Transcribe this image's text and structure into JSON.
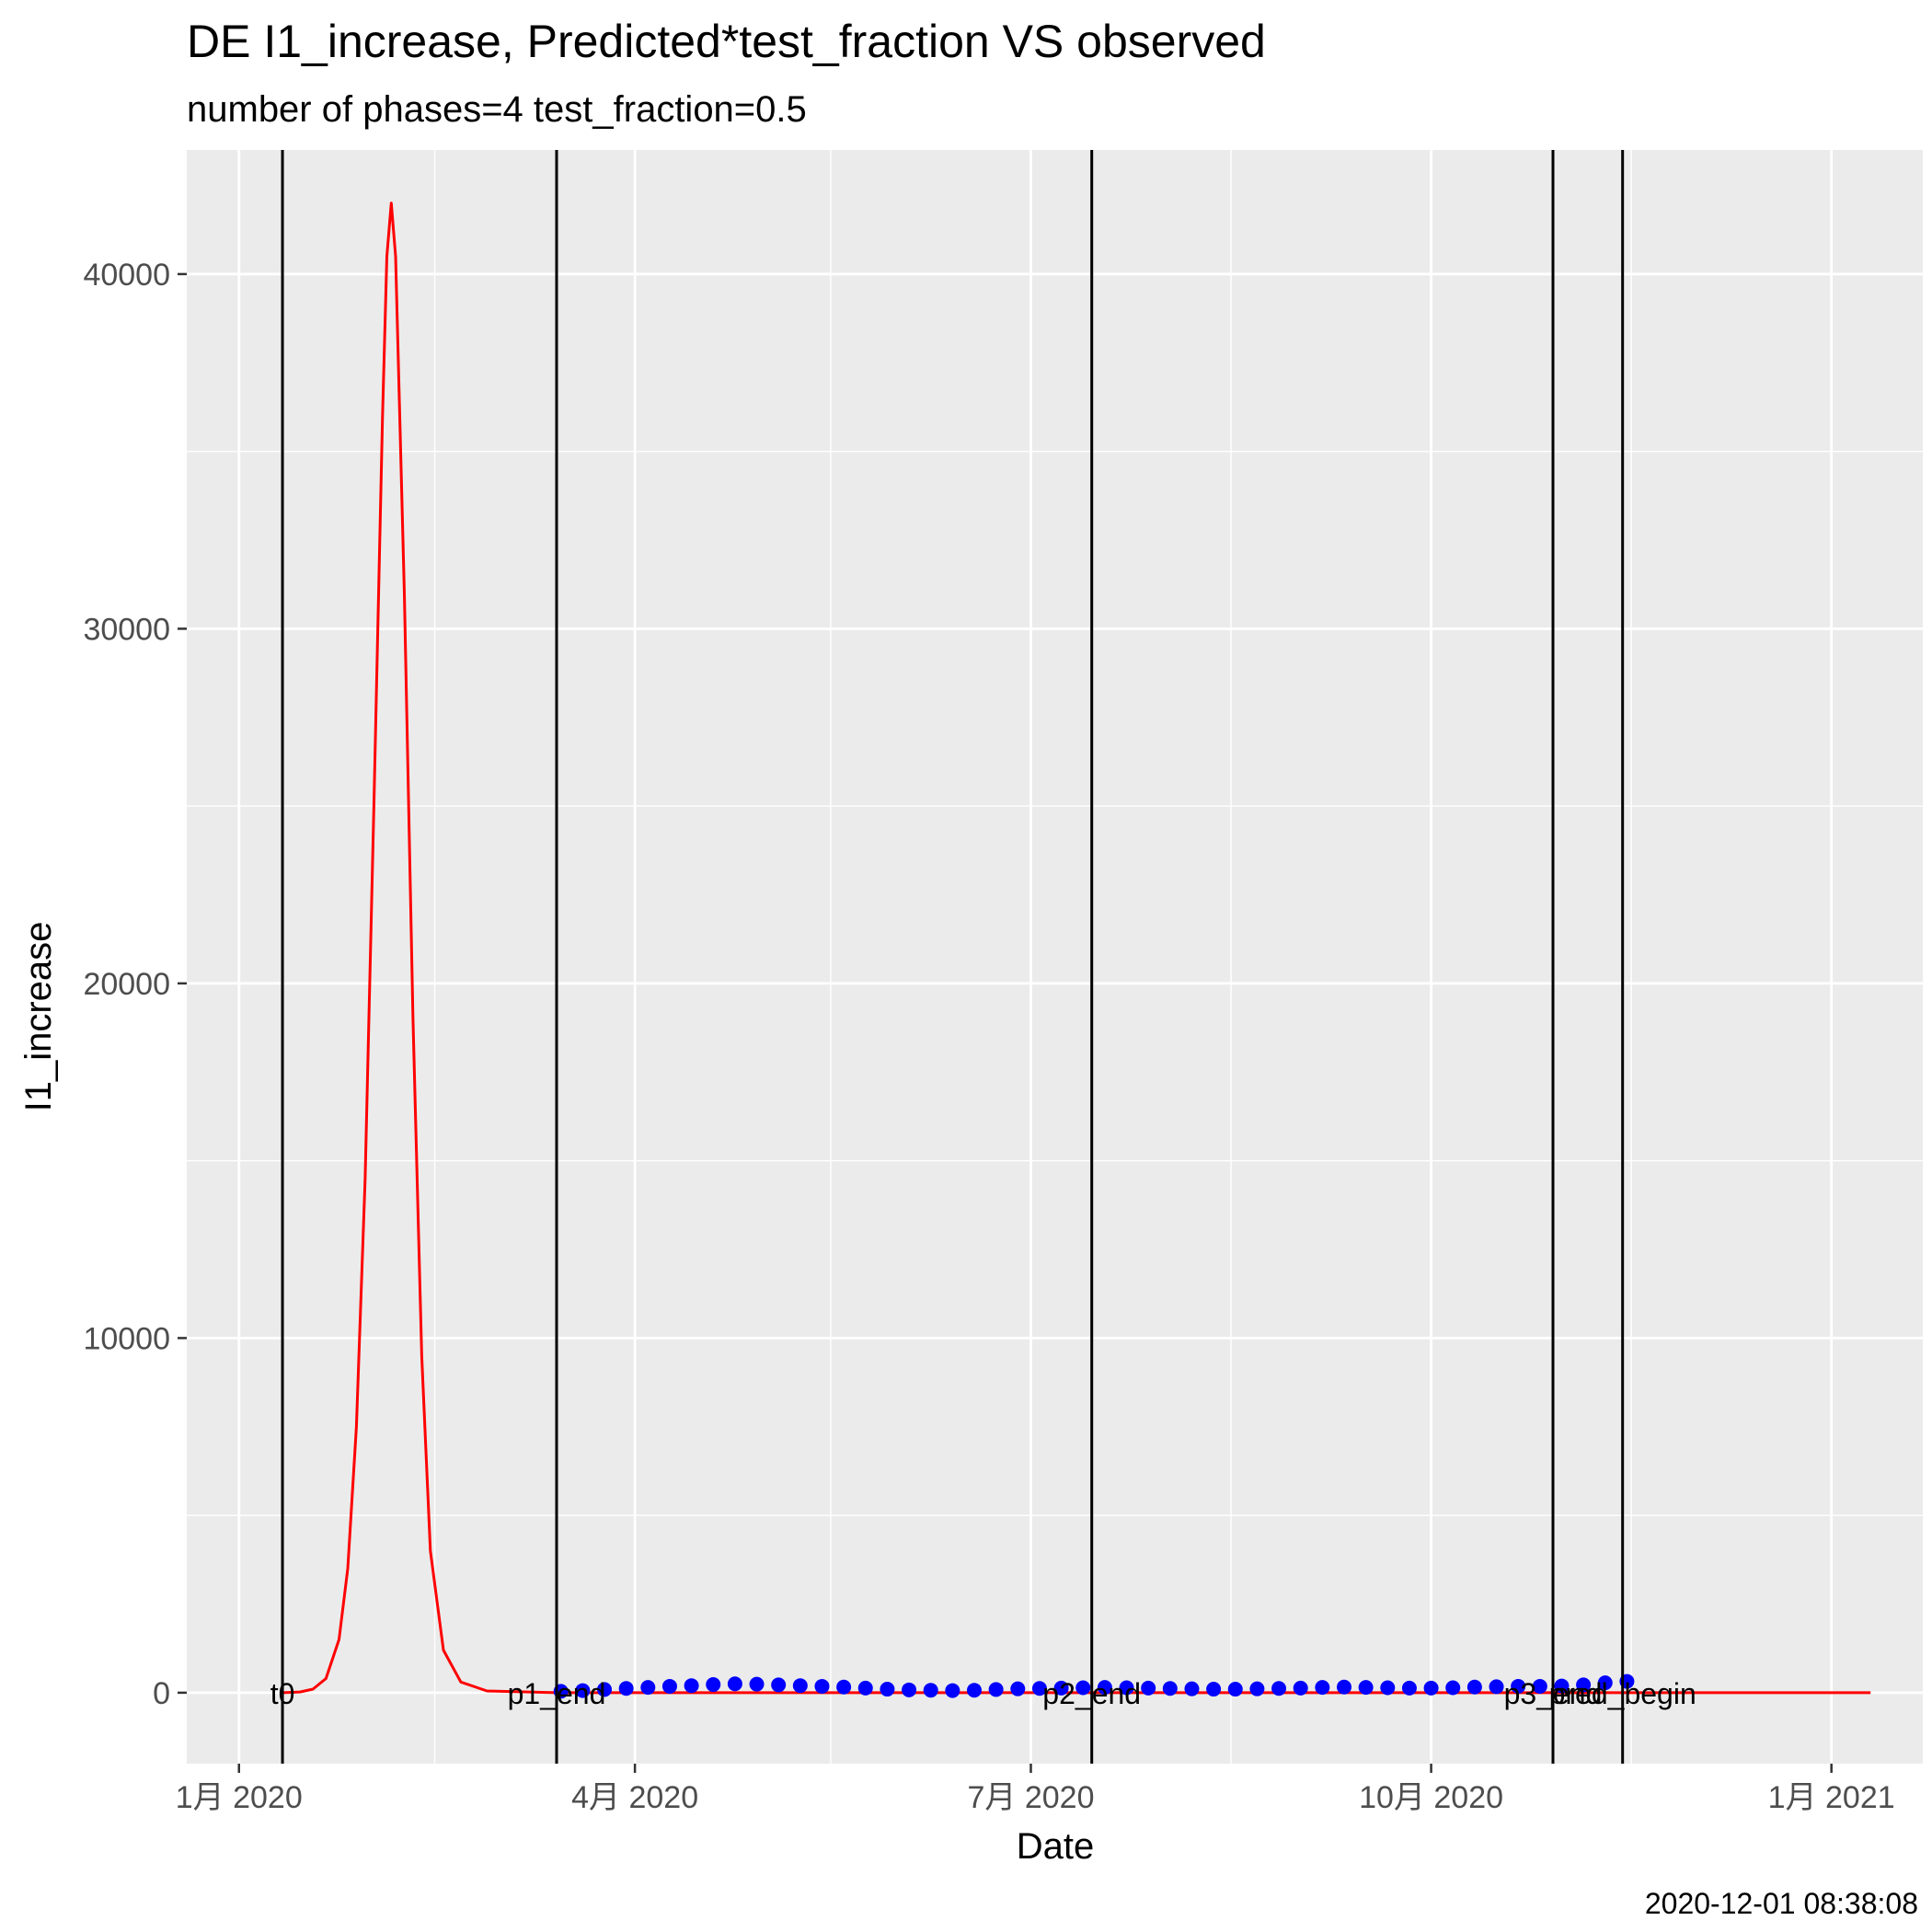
{
  "chart_data": {
    "type": "line",
    "title": "DE I1_increase, Predicted*test_fraction VS observed",
    "subtitle": "number of phases=4   test_fraction=0.5",
    "xlabel": "Date",
    "ylabel": "I1_increase",
    "caption": "2020-12-01 08:38:08",
    "x_scale": "date",
    "xlim": [
      "2019-12-20",
      "2021-01-22"
    ],
    "ylim": [
      -2000,
      43500
    ],
    "x_ticks": [
      {
        "date": "2020-01-01",
        "label": "1月 2020"
      },
      {
        "date": "2020-04-01",
        "label": "4月 2020"
      },
      {
        "date": "2020-07-01",
        "label": "7月 2020"
      },
      {
        "date": "2020-10-01",
        "label": "10月 2020"
      },
      {
        "date": "2021-01-01",
        "label": "1月 2021"
      }
    ],
    "x_minor_ticks": [
      "2020-02-15",
      "2020-05-16",
      "2020-08-16",
      "2020-11-16"
    ],
    "y_ticks": [
      0,
      10000,
      20000,
      30000,
      40000
    ],
    "y_minor_ticks": [
      5000,
      15000,
      25000,
      35000
    ],
    "grid": true,
    "panel_background": "#ebebeb",
    "vertical_lines": [
      {
        "date": "2020-01-11",
        "label": "t0"
      },
      {
        "date": "2020-03-14",
        "label": "p1_end"
      },
      {
        "date": "2020-07-15",
        "label": "p2_end"
      },
      {
        "date": "2020-10-29",
        "label": "p3_end"
      },
      {
        "date": "2020-11-14",
        "label": "pred_begin"
      }
    ],
    "series": [
      {
        "style": "line",
        "color": "#ff0000",
        "points": [
          [
            "2020-01-11",
            0
          ],
          [
            "2020-01-15",
            20
          ],
          [
            "2020-01-18",
            100
          ],
          [
            "2020-01-21",
            400
          ],
          [
            "2020-01-24",
            1500
          ],
          [
            "2020-01-26",
            3500
          ],
          [
            "2020-01-28",
            7500
          ],
          [
            "2020-01-30",
            14500
          ],
          [
            "2020-02-01",
            25000
          ],
          [
            "2020-02-03",
            36000
          ],
          [
            "2020-02-04",
            40500
          ],
          [
            "2020-02-05",
            42000
          ],
          [
            "2020-02-06",
            40500
          ],
          [
            "2020-02-08",
            31000
          ],
          [
            "2020-02-10",
            19000
          ],
          [
            "2020-02-12",
            9500
          ],
          [
            "2020-02-14",
            4000
          ],
          [
            "2020-02-17",
            1200
          ],
          [
            "2020-02-21",
            300
          ],
          [
            "2020-02-27",
            50
          ],
          [
            "2020-03-14",
            0
          ],
          [
            "2020-06-01",
            0
          ],
          [
            "2020-09-01",
            0
          ],
          [
            "2020-11-14",
            0
          ],
          [
            "2021-01-10",
            0
          ]
        ]
      },
      {
        "style": "points",
        "color": "#0000ff",
        "points": [
          [
            "2020-03-15",
            40
          ],
          [
            "2020-03-20",
            60
          ],
          [
            "2020-03-25",
            90
          ],
          [
            "2020-03-30",
            120
          ],
          [
            "2020-04-04",
            150
          ],
          [
            "2020-04-09",
            180
          ],
          [
            "2020-04-14",
            200
          ],
          [
            "2020-04-19",
            230
          ],
          [
            "2020-04-24",
            250
          ],
          [
            "2020-04-29",
            240
          ],
          [
            "2020-05-04",
            220
          ],
          [
            "2020-05-09",
            200
          ],
          [
            "2020-05-14",
            180
          ],
          [
            "2020-05-19",
            160
          ],
          [
            "2020-05-24",
            130
          ],
          [
            "2020-05-29",
            100
          ],
          [
            "2020-06-03",
            80
          ],
          [
            "2020-06-08",
            70
          ],
          [
            "2020-06-13",
            60
          ],
          [
            "2020-06-18",
            70
          ],
          [
            "2020-06-23",
            90
          ],
          [
            "2020-06-28",
            110
          ],
          [
            "2020-07-03",
            120
          ],
          [
            "2020-07-08",
            130
          ],
          [
            "2020-07-13",
            140
          ],
          [
            "2020-07-18",
            150
          ],
          [
            "2020-07-23",
            140
          ],
          [
            "2020-07-28",
            130
          ],
          [
            "2020-08-02",
            120
          ],
          [
            "2020-08-07",
            110
          ],
          [
            "2020-08-12",
            100
          ],
          [
            "2020-08-17",
            100
          ],
          [
            "2020-08-22",
            110
          ],
          [
            "2020-08-27",
            120
          ],
          [
            "2020-09-01",
            130
          ],
          [
            "2020-09-06",
            150
          ],
          [
            "2020-09-11",
            160
          ],
          [
            "2020-09-16",
            150
          ],
          [
            "2020-09-21",
            140
          ],
          [
            "2020-09-26",
            130
          ],
          [
            "2020-10-01",
            130
          ],
          [
            "2020-10-06",
            140
          ],
          [
            "2020-10-11",
            160
          ],
          [
            "2020-10-16",
            170
          ],
          [
            "2020-10-21",
            180
          ],
          [
            "2020-10-26",
            180
          ],
          [
            "2020-10-31",
            190
          ],
          [
            "2020-11-05",
            220
          ],
          [
            "2020-11-10",
            280
          ],
          [
            "2020-11-15",
            320
          ]
        ]
      }
    ]
  }
}
